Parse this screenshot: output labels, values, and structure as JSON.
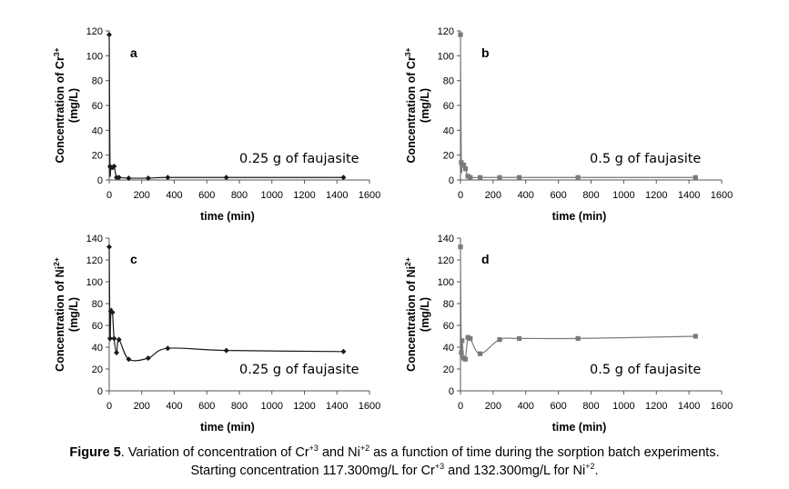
{
  "caption": {
    "label": "Figure 5",
    "line1_a": ". Variation of concentration of Cr",
    "line1_sup1": "+3",
    "line1_b": " and Ni",
    "line1_sup2": "+2",
    "line1_c": " as a function of time during the sorption batch experiments.",
    "line2_a": "Starting concentration 117.300mg/L for Cr",
    "line2_sup1": "+3",
    "line2_b": " and 132.300mg/L for Ni",
    "line2_sup2": "+2",
    "line2_c": "."
  },
  "chart_data": [
    {
      "panel": "a",
      "type": "line",
      "xlabel": "time (min)",
      "ylabel_base": "Concentration of Cr",
      "ylabel_sup": "3+",
      "ylabel_unit": "(mg/L)",
      "annotation": "0.25 g of faujasite",
      "xlim": [
        0,
        1600
      ],
      "ylim": [
        0,
        120
      ],
      "xticks": [
        0,
        200,
        400,
        600,
        800,
        1000,
        1200,
        1400,
        1600
      ],
      "yticks": [
        0,
        20,
        40,
        60,
        80,
        100,
        120
      ],
      "marker": "diamond",
      "color": "#1a1a1a",
      "x": [
        0,
        5,
        10,
        20,
        30,
        45,
        60,
        120,
        240,
        360,
        720,
        1440
      ],
      "y": [
        117,
        11,
        10,
        10,
        11,
        2,
        2,
        1.5,
        1.5,
        2,
        2,
        2
      ]
    },
    {
      "panel": "b",
      "type": "line",
      "xlabel": "time (min)",
      "ylabel_base": "Concentration of Cr",
      "ylabel_sup": "3+",
      "ylabel_unit": "(mg/L)",
      "annotation": "0.5 g of faujasite",
      "xlim": [
        0,
        1600
      ],
      "ylim": [
        0,
        120
      ],
      "xticks": [
        0,
        200,
        400,
        600,
        800,
        1000,
        1200,
        1400,
        1600
      ],
      "yticks": [
        0,
        20,
        40,
        60,
        80,
        100,
        120
      ],
      "marker": "square",
      "color": "#7a7a7a",
      "x": [
        0,
        5,
        10,
        20,
        30,
        45,
        60,
        120,
        240,
        360,
        720,
        1440
      ],
      "y": [
        117,
        14,
        12,
        12,
        9,
        3,
        2,
        2,
        2,
        2,
        2,
        2
      ]
    },
    {
      "panel": "c",
      "type": "line",
      "xlabel": "time (min)",
      "ylabel_base": "Concentration of Ni",
      "ylabel_sup": "2+",
      "ylabel_unit": "(mg/L)",
      "annotation": "0.25 g of faujasite",
      "xlim": [
        0,
        1600
      ],
      "ylim": [
        0,
        140
      ],
      "xticks": [
        0,
        200,
        400,
        600,
        800,
        1000,
        1200,
        1400,
        1600
      ],
      "yticks": [
        0,
        20,
        40,
        60,
        80,
        100,
        120,
        140
      ],
      "marker": "diamond",
      "color": "#1a1a1a",
      "x": [
        0,
        5,
        10,
        20,
        30,
        45,
        60,
        120,
        240,
        360,
        720,
        1440
      ],
      "y": [
        132,
        48,
        73,
        72,
        48,
        35,
        47,
        29,
        30,
        39,
        37,
        36
      ]
    },
    {
      "panel": "d",
      "type": "line",
      "xlabel": "time (min)",
      "ylabel_base": "Concentration of Ni",
      "ylabel_sup": "2+",
      "ylabel_unit": "(mg/L)",
      "annotation": "0.5 g of faujasite",
      "xlim": [
        0,
        1600
      ],
      "ylim": [
        0,
        140
      ],
      "xticks": [
        0,
        200,
        400,
        600,
        800,
        1000,
        1200,
        1400,
        1600
      ],
      "yticks": [
        0,
        20,
        40,
        60,
        80,
        100,
        120,
        140
      ],
      "marker": "square",
      "color": "#7a7a7a",
      "x": [
        0,
        5,
        10,
        20,
        30,
        45,
        60,
        120,
        240,
        360,
        720,
        1440
      ],
      "y": [
        132,
        35,
        46,
        30,
        29,
        49,
        48,
        34,
        47,
        48,
        48,
        50
      ]
    }
  ]
}
